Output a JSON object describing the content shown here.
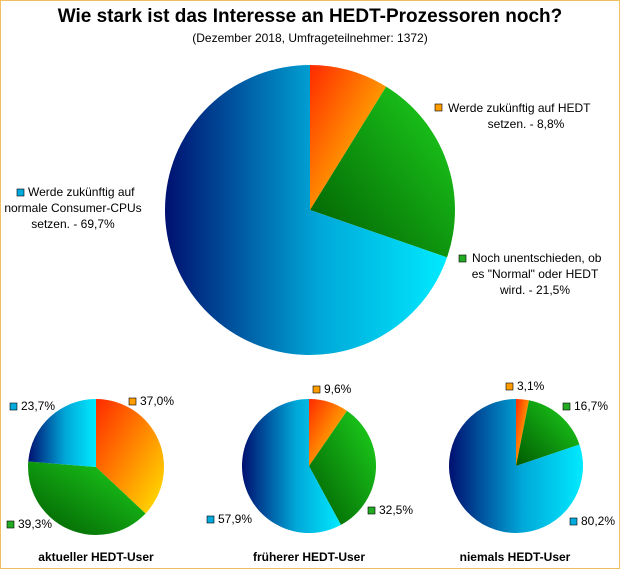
{
  "chart_data": [
    {
      "type": "pie",
      "title": "Wie stark ist das Interesse an HEDT-Prozessoren noch?",
      "subtitle": "(Dezember 2018, Umfrageteilnehmer: 1372)",
      "series": [
        {
          "name": "Werde zukünftig auf HEDT setzen.",
          "value": 8.8,
          "label": "8,8%",
          "color": "#ff8c00"
        },
        {
          "name": "Noch unentschieden, ob es \"Normal\" oder HEDT wird.",
          "value": 21.5,
          "label": "21,5%",
          "color": "#22bb22"
        },
        {
          "name": "Werde zukünftig auf normale Consumer-CPUs setzen.",
          "value": 69.7,
          "label": "69,7%",
          "color": "#00c8e8"
        }
      ],
      "labels": {
        "hedt": [
          "Werde zukünftig auf HEDT",
          "setzen. - 8,8%"
        ],
        "undecided": [
          "Noch unentschieden, ob",
          "es \"Normal\" oder HEDT",
          "wird. - 21,5%"
        ],
        "consumer": [
          "Werde zukünftig auf",
          "normale Consumer-CPUs",
          "setzen. - 69,7%"
        ]
      }
    },
    {
      "type": "pie",
      "title": "aktueller HEDT-User",
      "series": [
        {
          "value": 37.0,
          "label": "37,0%"
        },
        {
          "value": 39.3,
          "label": "39,3%"
        },
        {
          "value": 23.7,
          "label": "23,7%"
        }
      ]
    },
    {
      "type": "pie",
      "title": "früherer HEDT-User",
      "series": [
        {
          "value": 9.6,
          "label": "9,6%"
        },
        {
          "value": 32.5,
          "label": "32,5%"
        },
        {
          "value": 57.9,
          "label": "57,9%"
        }
      ]
    },
    {
      "type": "pie",
      "title": "niemals HEDT-User",
      "series": [
        {
          "value": 3.1,
          "label": "3,1%"
        },
        {
          "value": 16.7,
          "label": "16,7%"
        },
        {
          "value": 80.2,
          "label": "80,2%"
        }
      ]
    }
  ]
}
